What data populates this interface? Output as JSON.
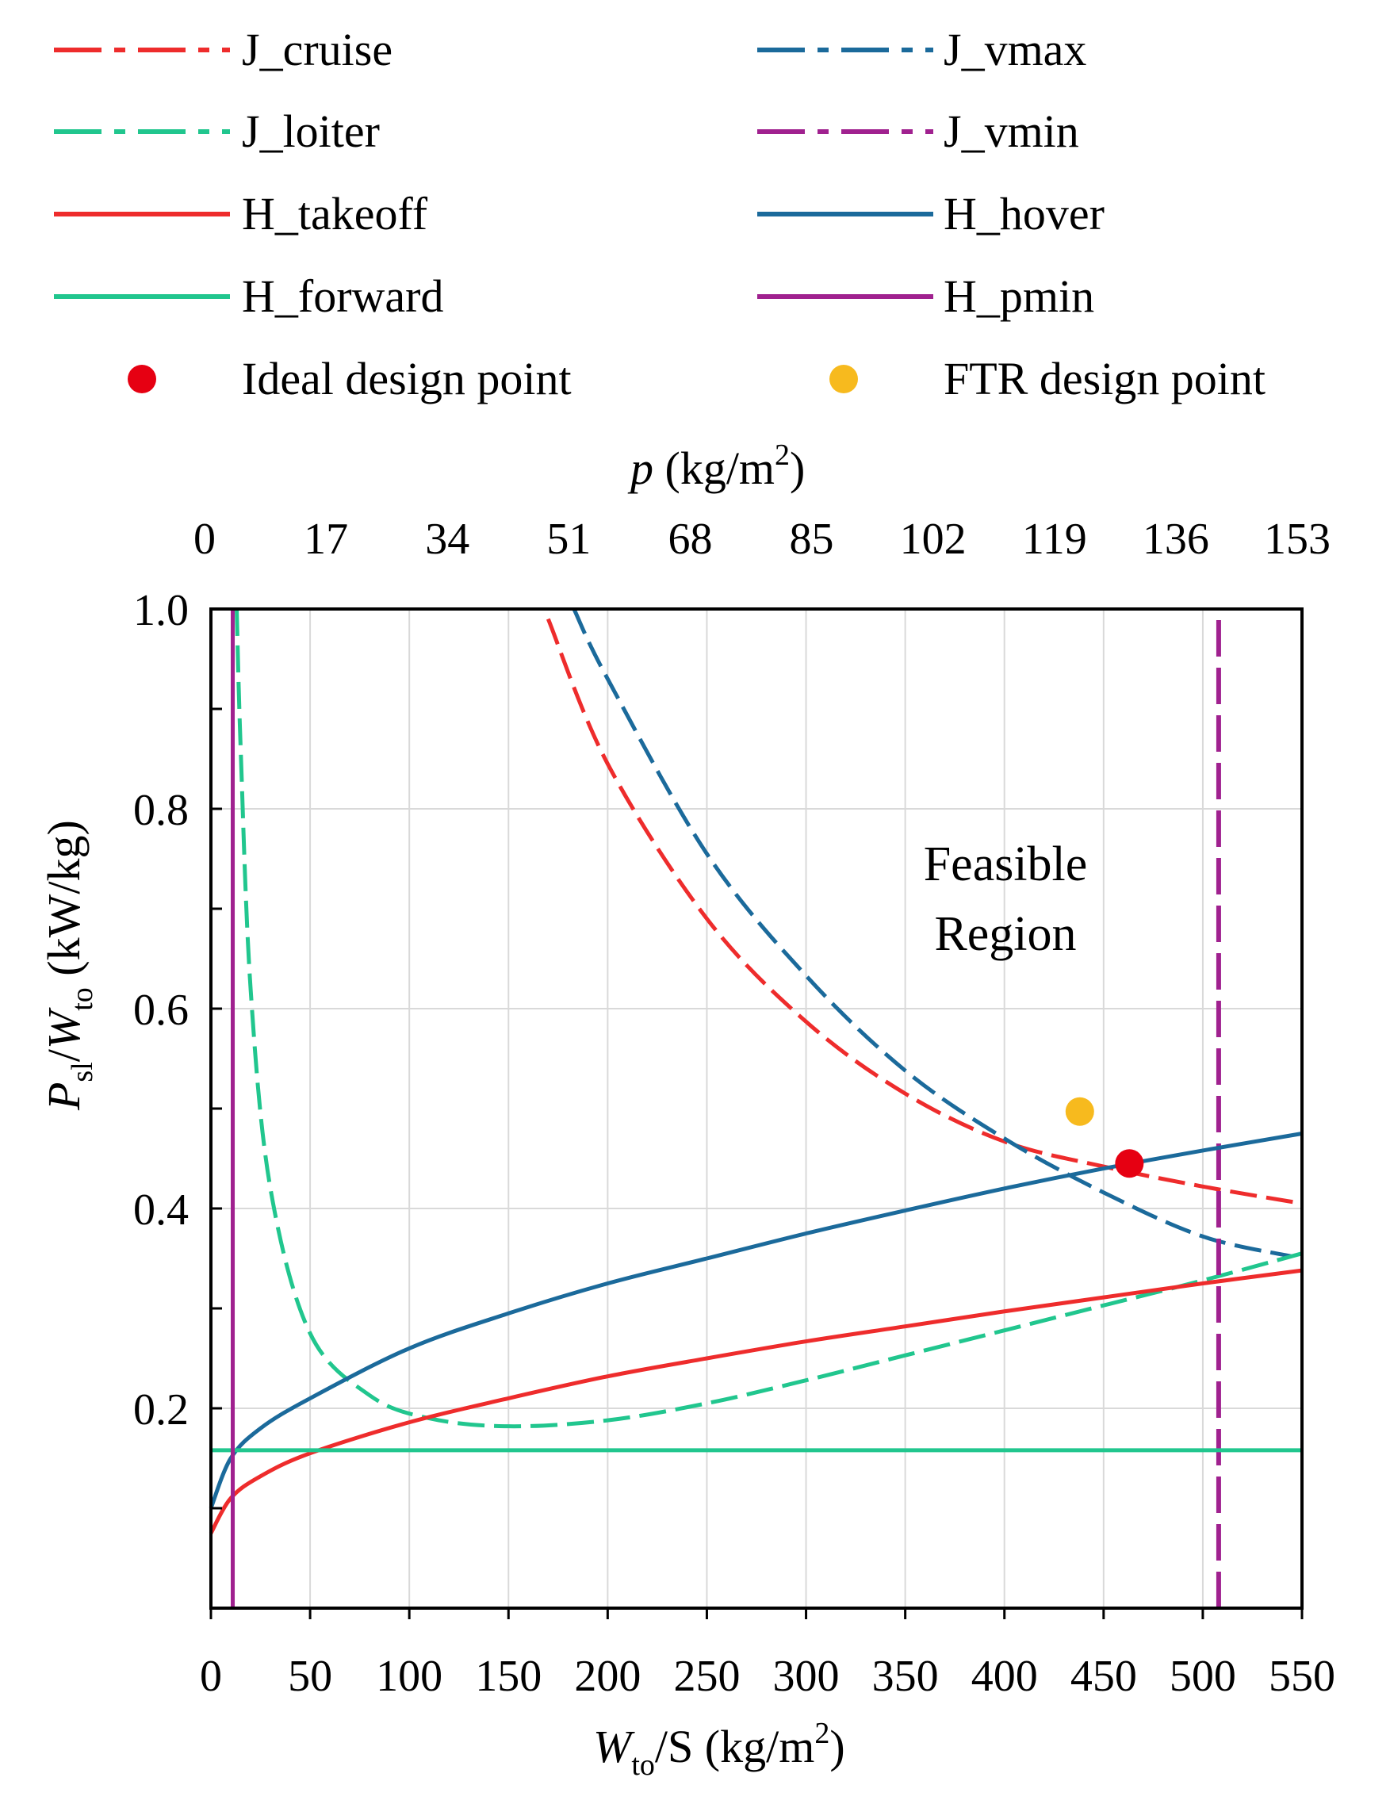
{
  "chart_data": {
    "type": "line",
    "x_axis": {
      "label_main": "W",
      "label_sub": "to",
      "label_rest": "/S (kg/m",
      "label_sup": "2",
      "label_close": ")",
      "range": [
        0,
        550
      ],
      "ticks": [
        0,
        50,
        100,
        150,
        200,
        250,
        300,
        350,
        400,
        450,
        500,
        550
      ]
    },
    "x2_axis": {
      "label_main": "p",
      "label_rest": " (kg/m",
      "label_sup": "2",
      "label_close": ")",
      "ticks": [
        "0",
        "17",
        "34",
        "51",
        "68",
        "85",
        "102",
        "119",
        "136",
        "153"
      ]
    },
    "y_axis": {
      "label_p": "P",
      "label_sl": "sl",
      "label_slash": "/",
      "label_w": "W",
      "label_to": "to",
      "label_unit": " (kW/kg)",
      "range": [
        0,
        1.0
      ],
      "ticks": [
        "0.2",
        "0.4",
        "0.6",
        "0.8",
        "1.0"
      ],
      "tick_values": [
        0.2,
        0.4,
        0.6,
        0.8,
        1.0
      ]
    },
    "annotation": [
      "Feasible",
      "Region"
    ],
    "series": [
      {
        "name": "J_cruise",
        "color": "#EE2C2C",
        "style": "dashdot",
        "x": [
          170,
          200,
          250,
          300,
          350,
          400,
          450,
          500,
          550
        ],
        "y": [
          0.99,
          0.845,
          0.69,
          0.587,
          0.515,
          0.467,
          0.442,
          0.422,
          0.405
        ]
      },
      {
        "name": "J_vmax",
        "color": "#1B6A9B",
        "style": "dashdot",
        "x": [
          183,
          200,
          250,
          300,
          350,
          400,
          450,
          500,
          545
        ],
        "y": [
          1.0,
          0.93,
          0.755,
          0.633,
          0.538,
          0.47,
          0.416,
          0.372,
          0.352
        ]
      },
      {
        "name": "J_loiter",
        "color": "#21C68E",
        "style": "dashdot",
        "x": [
          13,
          15,
          20,
          30,
          50,
          80,
          110,
          150,
          200,
          250,
          300,
          350,
          400,
          450,
          500,
          550
        ],
        "y": [
          1.0,
          0.86,
          0.62,
          0.42,
          0.275,
          0.213,
          0.19,
          0.182,
          0.188,
          0.205,
          0.228,
          0.253,
          0.278,
          0.303,
          0.328,
          0.355
        ]
      },
      {
        "name": "J_vmin",
        "color": "#A0218F",
        "style": "dashdot",
        "x": [
          508,
          508
        ],
        "y": [
          0,
          0.99
        ]
      },
      {
        "name": "H_takeoff",
        "color": "#EE2C2C",
        "style": "solid",
        "x": [
          0,
          10,
          25,
          50,
          100,
          150,
          200,
          250,
          300,
          350,
          400,
          450,
          500,
          550
        ],
        "y": [
          0.075,
          0.11,
          0.132,
          0.155,
          0.186,
          0.21,
          0.232,
          0.25,
          0.267,
          0.282,
          0.297,
          0.311,
          0.325,
          0.338
        ]
      },
      {
        "name": "H_hover",
        "color": "#1B6A9B",
        "style": "solid",
        "x": [
          0,
          10,
          25,
          50,
          100,
          150,
          200,
          250,
          300,
          350,
          400,
          450,
          500,
          550
        ],
        "y": [
          0.1,
          0.15,
          0.18,
          0.21,
          0.26,
          0.295,
          0.325,
          0.35,
          0.375,
          0.398,
          0.42,
          0.44,
          0.458,
          0.475
        ]
      },
      {
        "name": "H_forward",
        "color": "#21C68E",
        "style": "solid",
        "x": [
          0,
          550
        ],
        "y": [
          0.158,
          0.158
        ]
      },
      {
        "name": "H_pmin",
        "color": "#A0218F",
        "style": "solid",
        "x": [
          11,
          11
        ],
        "y": [
          0,
          1.0
        ]
      }
    ],
    "points": [
      {
        "name": "Ideal design point",
        "color": "#E60012",
        "x": 463,
        "y": 0.445
      },
      {
        "name": "FTR design point",
        "color": "#F7BA1E",
        "x": 438,
        "y": 0.497
      }
    ]
  }
}
